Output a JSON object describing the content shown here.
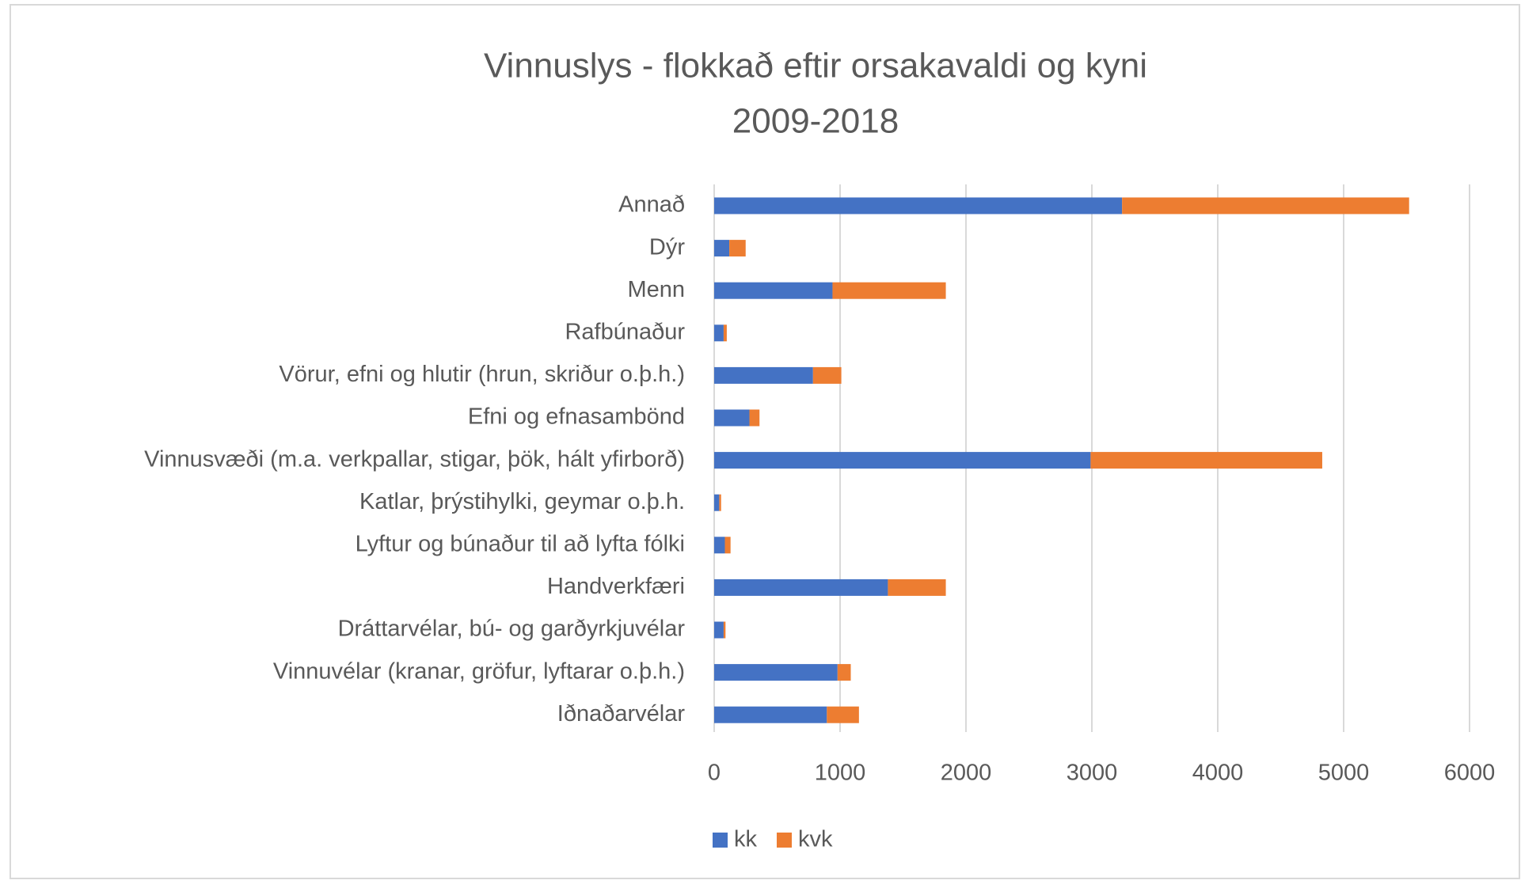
{
  "chart_data": {
    "type": "stacked_barh",
    "title": [
      "Vinnuslys - flokkað eftir orsakavaldi og kyni",
      "2009-2018"
    ],
    "categories": [
      "Annað",
      "Dýr",
      "Menn",
      "Rafbúnaður",
      "Vörur, efni og hlutir (hrun, skriður o.þ.h.)",
      "Efni og efnasambönd",
      "Vinnusvæði (m.a. verkpallar, stigar, þök, hált yfirborð)",
      "Katlar, þrýstihylki, geymar o.þ.h.",
      "Lyftur og búnaður til að lyfta fólki",
      "Handverkfæri",
      "Dráttarvélar, bú- og garðyrkjuvélar",
      "Vinnuvélar (kranar, gröfur, lyftarar o.þ.h.)",
      "Iðnaðarvélar"
    ],
    "series": [
      {
        "name": "kk",
        "color": "#4472c4",
        "values": [
          3240,
          120,
          940,
          75,
          785,
          280,
          2990,
          40,
          85,
          1380,
          75,
          980,
          895
        ]
      },
      {
        "name": "kvk",
        "color": "#ed7d31",
        "values": [
          2280,
          130,
          900,
          25,
          225,
          80,
          1840,
          15,
          45,
          460,
          15,
          105,
          255
        ]
      }
    ],
    "xlim": [
      0,
      6000
    ],
    "xticks": [
      0,
      1000,
      2000,
      3000,
      4000,
      5000,
      6000
    ],
    "grid": true,
    "legend": "bottom"
  }
}
